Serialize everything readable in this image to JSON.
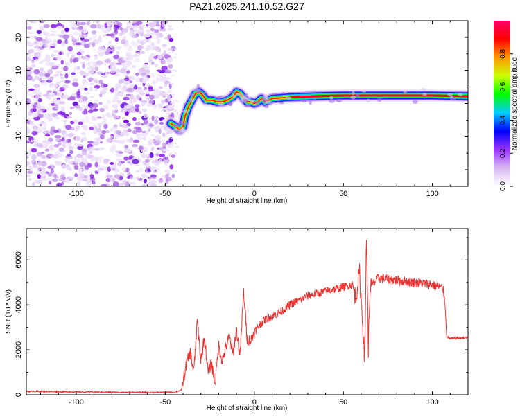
{
  "title": "PAZ1.2025.241.10.52.G27",
  "chart_data": [
    {
      "type": "heatmap",
      "name": "spectrogram",
      "xlabel": "Height of straight line (km)",
      "ylabel": "Frequency (Hz)",
      "xlim": [
        -128,
        120
      ],
      "ylim": [
        -25,
        25
      ],
      "xticks": [
        -100,
        -50,
        0,
        50,
        100
      ],
      "yticks": [
        -20,
        -10,
        0,
        10,
        20
      ],
      "colorbar": {
        "label": "Normalized spectral amplitude",
        "range": [
          0,
          1
        ],
        "ticks": [
          "0.0",
          "0.2",
          "0.4",
          "0.6",
          "0.8"
        ],
        "colors": [
          "#ffffff",
          "#d8b8f0",
          "#9933ff",
          "#0000ff",
          "#00ccff",
          "#00ff00",
          "#ccff00",
          "#ff9900",
          "#ff0000",
          "#ff0066"
        ]
      },
      "noise_region": {
        "x_from": -128,
        "x_to": -47,
        "freq_range": [
          -25,
          25
        ]
      },
      "ridge": {
        "x": [
          -47,
          -44,
          -42,
          -40,
          -39,
          -37,
          -35,
          -33,
          -31,
          -29,
          -27,
          -24,
          -21,
          -18,
          -15,
          -12,
          -10,
          -8,
          -6,
          -4,
          -2,
          0,
          2,
          4,
          6,
          8,
          10,
          15,
          20,
          30,
          40,
          50,
          60,
          70,
          80,
          90,
          100,
          110,
          120
        ],
        "freq": [
          -6,
          -7,
          -8,
          -7,
          -4,
          -1,
          1,
          3,
          3.5,
          2.5,
          1,
          1,
          0.5,
          0.5,
          1,
          2,
          3.5,
          3,
          1.5,
          0.5,
          0.5,
          0,
          0.5,
          1.5,
          0.5,
          1,
          1.5,
          1.7,
          1.9,
          2.1,
          2.3,
          2.4,
          2.4,
          2.4,
          2.4,
          2.4,
          2.4,
          2.3,
          2.2
        ]
      }
    },
    {
      "type": "line",
      "name": "snr",
      "xlabel": "Height of straight line (km)",
      "ylabel": "SNR (10 * v/v)",
      "xlim": [
        -128,
        120
      ],
      "ylim": [
        0,
        7400
      ],
      "xticks": [
        -100,
        -50,
        0,
        50,
        100
      ],
      "yticks": [
        0,
        2000,
        4000,
        6000
      ],
      "series": [
        {
          "name": "SNR",
          "color": "#ee3333",
          "x": [
            -128,
            -90,
            -60,
            -45,
            -41,
            -38,
            -36,
            -34,
            -32,
            -30,
            -28,
            -26,
            -24,
            -22,
            -20,
            -18,
            -16,
            -14,
            -12,
            -10,
            -8,
            -6,
            -4,
            -2,
            0,
            5,
            10,
            15,
            20,
            25,
            30,
            35,
            40,
            45,
            50,
            55,
            57,
            59,
            61,
            62,
            63,
            64,
            65,
            70,
            80,
            90,
            100,
            104,
            106,
            107,
            108,
            110,
            120
          ],
          "y": [
            150,
            120,
            100,
            110,
            200,
            1400,
            1900,
            1000,
            3300,
            1500,
            2600,
            1000,
            1400,
            500,
            2200,
            1500,
            2100,
            2600,
            1800,
            2900,
            1700,
            4600,
            2500,
            2400,
            2800,
            3300,
            3500,
            3700,
            4000,
            4200,
            4400,
            4500,
            4600,
            4700,
            4800,
            4900,
            4300,
            5500,
            3000,
            1500,
            7400,
            2000,
            4800,
            5200,
            5100,
            5000,
            4900,
            4800,
            4700,
            4200,
            2600,
            2500,
            2550
          ]
        }
      ]
    }
  ]
}
